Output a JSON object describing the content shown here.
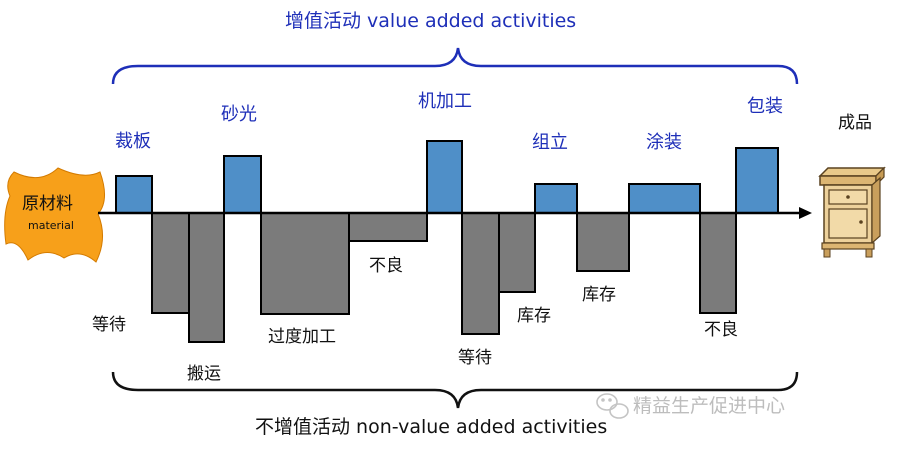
{
  "titles": {
    "top": "增值活动 value added activities",
    "bottom": "不增值活动 non-value added activities"
  },
  "raw_material": {
    "label_cn": "原材料",
    "label_en": "material"
  },
  "finished_product": {
    "label": "成品"
  },
  "value_added": [
    "裁板",
    "砂光",
    "机加工",
    "组立",
    "涂装",
    "包装"
  ],
  "non_value_added": [
    "等待",
    "搬运",
    "过度加工",
    "不良",
    "等待",
    "库存",
    "库存",
    "不良"
  ],
  "watermark": "精益生产促进中心",
  "colors": {
    "value_added_block": "#4f8fc8",
    "non_value_added_block": "#7b7b7b",
    "value_added_text": "#1e2fb8",
    "raw_material_fill": "#f7a01a"
  }
}
